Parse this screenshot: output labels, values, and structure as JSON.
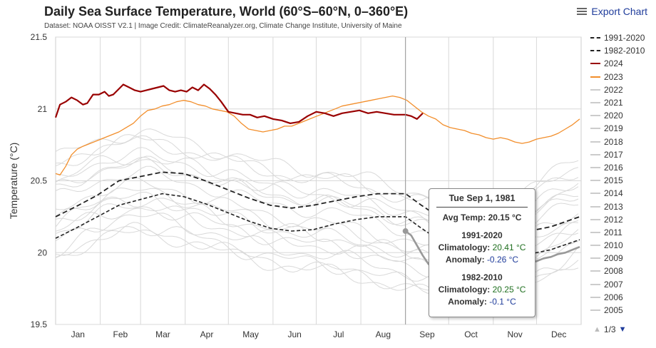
{
  "header": {
    "title": "Daily Sea Surface Temperature, World (60°S–60°N, 0–360°E)",
    "subtitle": "Dataset: NOAA OISST V2.1 | Image Credit: ClimateReanalyzer.org, Climate Change Institute, University of Maine",
    "export_label": "Export Chart"
  },
  "pager": {
    "text": "1/3"
  },
  "tooltip": {
    "date": "Tue Sep 1, 1981",
    "avg_temp_label": "Avg Temp:",
    "avg_temp_value": "20.15 °C",
    "sections": [
      {
        "name": "1991-2020",
        "clim_label": "Climatology:",
        "clim_value": "20.41 °C",
        "anom_label": "Anomaly:",
        "anom_value": "-0.26 °C"
      },
      {
        "name": "1982-2010",
        "clim_label": "Climatology:",
        "clim_value": "20.25 °C",
        "anom_label": "Anomaly:",
        "anom_value": "-0.1 °C"
      }
    ]
  },
  "legend": [
    {
      "label": "1991-2020",
      "color": "#222222",
      "style": "dashed"
    },
    {
      "label": "1982-2010",
      "color": "#222222",
      "style": "dashed"
    },
    {
      "label": "2024",
      "color": "#990000",
      "style": "solid"
    },
    {
      "label": "2023",
      "color": "#f28e2b",
      "style": "solid"
    },
    {
      "label": "2022",
      "color": "#cccccc",
      "style": "solid"
    },
    {
      "label": "2021",
      "color": "#cccccc",
      "style": "solid"
    },
    {
      "label": "2020",
      "color": "#cccccc",
      "style": "solid"
    },
    {
      "label": "2019",
      "color": "#cccccc",
      "style": "solid"
    },
    {
      "label": "2018",
      "color": "#cccccc",
      "style": "solid"
    },
    {
      "label": "2017",
      "color": "#cccccc",
      "style": "solid"
    },
    {
      "label": "2016",
      "color": "#cccccc",
      "style": "solid"
    },
    {
      "label": "2015",
      "color": "#cccccc",
      "style": "solid"
    },
    {
      "label": "2014",
      "color": "#cccccc",
      "style": "solid"
    },
    {
      "label": "2013",
      "color": "#cccccc",
      "style": "solid"
    },
    {
      "label": "2012",
      "color": "#cccccc",
      "style": "solid"
    },
    {
      "label": "2011",
      "color": "#cccccc",
      "style": "solid"
    },
    {
      "label": "2010",
      "color": "#cccccc",
      "style": "solid"
    },
    {
      "label": "2009",
      "color": "#cccccc",
      "style": "solid"
    },
    {
      "label": "2008",
      "color": "#cccccc",
      "style": "solid"
    },
    {
      "label": "2007",
      "color": "#cccccc",
      "style": "solid"
    },
    {
      "label": "2006",
      "color": "#cccccc",
      "style": "solid"
    },
    {
      "label": "2005",
      "color": "#cccccc",
      "style": "solid"
    }
  ],
  "chart_data": {
    "type": "line",
    "title": "Daily Sea Surface Temperature, World (60°S–60°N, 0–360°E)",
    "ylabel": "Temperature (°C)",
    "xlabel": "",
    "ylim": [
      19.5,
      21.5
    ],
    "yticks": [
      19.5,
      20,
      20.5,
      21,
      21.5
    ],
    "ytick_labels": [
      "19.5",
      "20",
      "20.5",
      "21",
      "21.5"
    ],
    "xlim": [
      1,
      366
    ],
    "month_labels": [
      "Jan",
      "Feb",
      "Mar",
      "Apr",
      "May",
      "Jun",
      "Jul",
      "Aug",
      "Sep",
      "Oct",
      "Nov",
      "Dec"
    ],
    "month_starts": [
      1,
      32,
      60,
      91,
      121,
      152,
      182,
      213,
      244,
      274,
      305,
      335
    ],
    "grid": true,
    "crosshair_day": 244,
    "legend_position": "right",
    "series": [
      {
        "name": "2024",
        "color": "#990000",
        "width": 2.2,
        "dash": "",
        "x": [
          1,
          4,
          8,
          12,
          16,
          20,
          23,
          27,
          31,
          35,
          38,
          41,
          44,
          48,
          52,
          56,
          60,
          64,
          68,
          72,
          76,
          80,
          84,
          88,
          92,
          96,
          100,
          104,
          108,
          112,
          116,
          121,
          126,
          131,
          136,
          141,
          146,
          152,
          158,
          164,
          170,
          176,
          182,
          188,
          194,
          200,
          206,
          212,
          218,
          224,
          230,
          236,
          240,
          244,
          248,
          252,
          256
        ],
        "y": [
          20.94,
          21.03,
          21.05,
          21.08,
          21.06,
          21.03,
          21.04,
          21.1,
          21.1,
          21.12,
          21.09,
          21.1,
          21.13,
          21.17,
          21.15,
          21.13,
          21.12,
          21.13,
          21.14,
          21.15,
          21.16,
          21.13,
          21.12,
          21.13,
          21.12,
          21.15,
          21.13,
          21.17,
          21.14,
          21.1,
          21.05,
          20.98,
          20.97,
          20.96,
          20.96,
          20.94,
          20.95,
          20.93,
          20.92,
          20.9,
          20.91,
          20.95,
          20.98,
          20.97,
          20.95,
          20.97,
          20.98,
          20.99,
          20.97,
          20.98,
          20.97,
          20.96,
          20.96,
          20.96,
          20.95,
          20.93,
          20.97
        ]
      },
      {
        "name": "2023",
        "color": "#f28e2b",
        "width": 1.3,
        "dash": "",
        "x": [
          1,
          4,
          8,
          12,
          16,
          20,
          25,
          30,
          35,
          40,
          45,
          50,
          55,
          60,
          65,
          70,
          75,
          80,
          85,
          90,
          95,
          100,
          105,
          110,
          115,
          120,
          125,
          130,
          135,
          140,
          145,
          150,
          155,
          160,
          165,
          170,
          175,
          180,
          185,
          190,
          195,
          200,
          205,
          210,
          215,
          220,
          225,
          230,
          235,
          240,
          245,
          250,
          255,
          260,
          265,
          270,
          275,
          280,
          285,
          290,
          295,
          300,
          305,
          310,
          315,
          320,
          325,
          330,
          335,
          340,
          345,
          350,
          355,
          360,
          365
        ],
        "y": [
          20.55,
          20.54,
          20.6,
          20.68,
          20.72,
          20.74,
          20.76,
          20.78,
          20.8,
          20.82,
          20.84,
          20.87,
          20.9,
          20.95,
          20.99,
          21.0,
          21.02,
          21.03,
          21.05,
          21.06,
          21.05,
          21.03,
          21.02,
          21.0,
          20.99,
          20.98,
          20.95,
          20.9,
          20.86,
          20.85,
          20.84,
          20.85,
          20.86,
          20.88,
          20.88,
          20.9,
          20.92,
          20.94,
          20.96,
          20.98,
          21.0,
          21.02,
          21.03,
          21.04,
          21.05,
          21.06,
          21.07,
          21.08,
          21.09,
          21.08,
          21.06,
          21.02,
          20.98,
          20.95,
          20.93,
          20.89,
          20.87,
          20.86,
          20.85,
          20.83,
          20.82,
          20.8,
          20.79,
          20.8,
          20.79,
          20.77,
          20.76,
          20.77,
          20.79,
          20.8,
          20.81,
          20.83,
          20.86,
          20.89,
          20.93
        ]
      },
      {
        "name": "1991-2020",
        "color": "#222222",
        "width": 1.8,
        "dash": "7,4",
        "x": [
          1,
          15,
          30,
          45,
          60,
          75,
          90,
          105,
          120,
          135,
          150,
          165,
          180,
          195,
          210,
          225,
          240,
          244,
          255,
          270,
          285,
          300,
          315,
          330,
          345,
          365
        ],
        "y": [
          20.25,
          20.32,
          20.4,
          20.5,
          20.53,
          20.56,
          20.55,
          20.5,
          20.44,
          20.38,
          20.33,
          20.31,
          20.33,
          20.36,
          20.39,
          20.41,
          20.41,
          20.41,
          20.33,
          20.23,
          20.16,
          20.13,
          20.13,
          20.15,
          20.18,
          20.25
        ]
      },
      {
        "name": "1982-2010",
        "color": "#222222",
        "width": 1.6,
        "dash": "5,3",
        "x": [
          1,
          15,
          30,
          45,
          60,
          75,
          90,
          105,
          120,
          135,
          150,
          165,
          180,
          195,
          210,
          225,
          240,
          244,
          255,
          270,
          285,
          300,
          315,
          330,
          345,
          365
        ],
        "y": [
          20.1,
          20.17,
          20.25,
          20.33,
          20.37,
          20.41,
          20.39,
          20.34,
          20.28,
          20.22,
          20.17,
          20.15,
          20.16,
          20.2,
          20.23,
          20.25,
          20.25,
          20.25,
          20.17,
          20.07,
          20.0,
          19.97,
          19.97,
          19.99,
          20.02,
          20.09
        ]
      },
      {
        "name": "1981",
        "color": "#999999",
        "width": 2.6,
        "dash": "",
        "x": [
          244,
          248,
          252,
          256,
          260,
          265,
          270,
          275,
          280,
          285,
          290,
          295,
          300,
          305,
          310,
          315,
          320,
          325,
          330,
          335,
          340,
          345,
          350,
          355,
          360,
          365
        ],
        "y": [
          20.15,
          20.12,
          20.05,
          19.98,
          19.92,
          19.88,
          19.86,
          19.85,
          19.84,
          19.84,
          19.86,
          19.85,
          19.84,
          19.86,
          19.88,
          19.9,
          19.91,
          19.92,
          19.93,
          19.94,
          19.96,
          19.97,
          19.99,
          20.0,
          20.02,
          20.04
        ]
      }
    ],
    "background_series_years": [
      "2022",
      "2021",
      "2020",
      "2019",
      "2018",
      "2017",
      "2016",
      "2015",
      "2014",
      "2013",
      "2012",
      "2011",
      "2010",
      "2009",
      "2008",
      "2007",
      "2006",
      "2005"
    ]
  }
}
